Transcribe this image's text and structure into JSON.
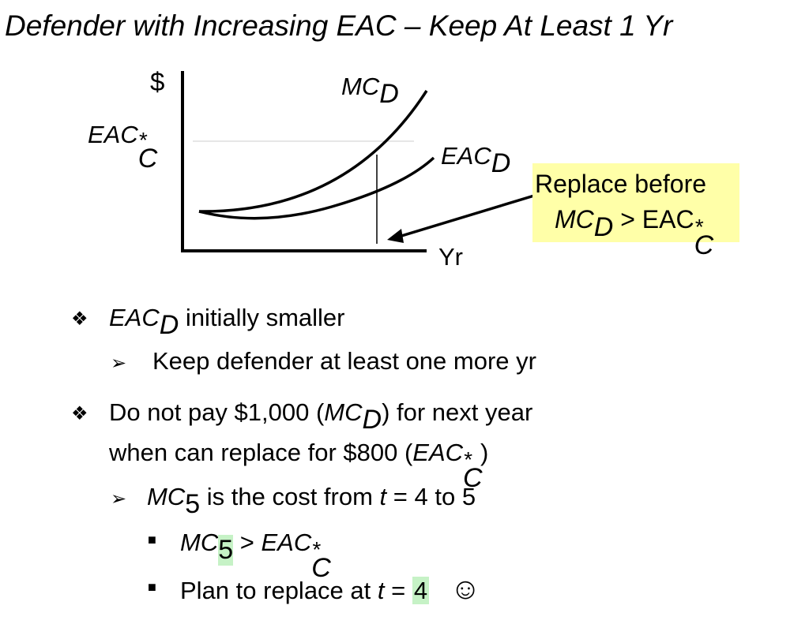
{
  "title": "Defender with Increasing EAC – Keep At Least 1 Yr",
  "chart": {
    "y_axis_label": "$",
    "x_axis_label": "Yr",
    "eac_star_label": "EAC",
    "eac_star_sup": "*",
    "eac_star_sub": "C",
    "mc_label": "MC",
    "mc_sub": "D",
    "eac_label": "EAC",
    "eac_sub": "D"
  },
  "callout": {
    "line1": "Replace before",
    "mc": "MC",
    "mc_sub": "D",
    "gt": " > EAC",
    "sup": "*",
    "sub": "C"
  },
  "bullets": {
    "b1_eac": "EAC",
    "b1_sub": "D",
    "b1_text": " initially smaller",
    "b1_1_text": "Keep defender at least one more yr",
    "b2_line1_pre": "Do not pay $1,000 (",
    "b2_mc": "MC",
    "b2_mc_sub": "D",
    "b2_line1_post": ") for next year",
    "b2_line2_pre": "when can replace for $800 (",
    "b2_eac": "EAC",
    "b2_sup": "*",
    "b2_sub": "C",
    "b2_line2_post": ")",
    "b2_1_mc": "MC",
    "b2_1_sub": "5",
    "b2_1_text": " is the cost from ",
    "b2_1_t": "t",
    "b2_1_tail": " = 4 to 5",
    "b2_1_1_mc": "MC",
    "b2_1_1_sub": "5",
    "b2_1_1_gt": " > ",
    "b2_1_1_eac": "EAC",
    "b2_1_1_sup": "*",
    "b2_1_1_subc": "C",
    "b2_1_2_pre": "Plan to replace at ",
    "b2_1_2_t": "t",
    "b2_1_2_eq": " = ",
    "b2_1_2_val": "4",
    "smiley": "☺"
  },
  "colors": {
    "callout_bg": "#ffffa8",
    "highlight": "#c6f2c6"
  }
}
